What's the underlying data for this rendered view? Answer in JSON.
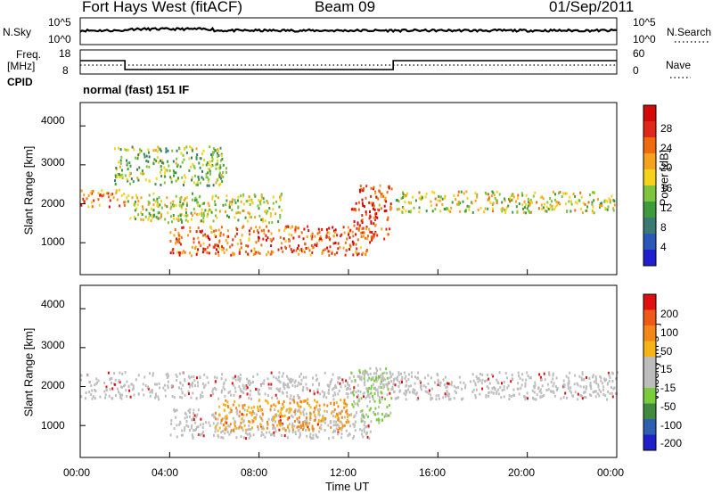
{
  "header": {
    "station": "Fort Hays West (fitACF)",
    "beam": "Beam 09",
    "date": "01/Sep/2011",
    "mode": "normal (fast) 151 IF"
  },
  "noise_panel": {
    "left_label": "N.Sky",
    "right_label": "N.Search",
    "left_ticks": [
      "10^5",
      "10^0"
    ],
    "right_ticks": [
      "10^5",
      "10^0"
    ]
  },
  "freq_panel": {
    "left_label_top": "Freq.",
    "left_label_unit": "[MHz]",
    "cpid_label": "CPID",
    "right_label": "Nave",
    "left_ticks": [
      "18",
      "8"
    ],
    "right_ticks": [
      "60",
      "0"
    ],
    "freq_steps": [
      {
        "from": 0,
        "to": 2,
        "value": 14
      },
      {
        "from": 2,
        "to": 14,
        "value": 10
      },
      {
        "from": 14,
        "to": 24,
        "value": 14
      }
    ]
  },
  "x_axis": {
    "label": "Time UT",
    "ticks": [
      "00:00",
      "04:00",
      "08:00",
      "12:00",
      "16:00",
      "20:00",
      "00:00"
    ]
  },
  "colors": {
    "power": [
      "#1f1fd0",
      "#2a58b8",
      "#3a7a70",
      "#3d9a3d",
      "#7ec43e",
      "#f5d21c",
      "#f6a21e",
      "#f06a10",
      "#e02818",
      "#d40808"
    ],
    "velocity": [
      "#2020c8",
      "#2f5fb0",
      "#3f8a3f",
      "#7acc3c",
      "#bdbdbd",
      "#bdbdbd",
      "#f6b418",
      "#f38818",
      "#ef5a18",
      "#e01010"
    ],
    "gs": "#bebebe"
  },
  "chart_data": [
    {
      "type": "heatmap",
      "title": "",
      "xlabel": "Time UT",
      "ylabel": "Slant Range [km]",
      "xlim": [
        0,
        24
      ],
      "ylim": [
        180,
        4600
      ],
      "y_ticks": [
        "1000",
        "2000",
        "3000",
        "4000"
      ],
      "colorbar": {
        "label": "Power [dB]",
        "ticks": [
          "28",
          "24",
          "20",
          "16",
          "12",
          "8",
          "4"
        ],
        "range": [
          0,
          30
        ]
      },
      "features": [
        {
          "name": "early band",
          "t": [
            0,
            2
          ],
          "range_km": [
            1950,
            2400
          ],
          "power_db": 22
        },
        {
          "name": "upper band",
          "t": [
            2,
            9
          ],
          "range_km": [
            1550,
            2300
          ],
          "power_db": 15
        },
        {
          "name": "main band",
          "t": [
            4,
            13
          ],
          "range_km": [
            700,
            1450
          ],
          "power_db": 24
        },
        {
          "name": "descending trace",
          "t": [
            12.1,
            13.9
          ],
          "range_km": [
            1100,
            2500
          ],
          "power_db": 26
        },
        {
          "name": "afternoon band",
          "t": [
            14,
            24
          ],
          "range_km": [
            1800,
            2350
          ],
          "power_db": 16
        },
        {
          "name": "high range patches",
          "t": [
            1.5,
            6.5
          ],
          "range_km": [
            2500,
            3500
          ],
          "power_db": 12
        }
      ]
    },
    {
      "type": "heatmap",
      "title": "",
      "xlabel": "Time UT",
      "ylabel": "Slant Range [km]",
      "xlim": [
        0,
        24
      ],
      "ylim": [
        180,
        4600
      ],
      "y_ticks": [
        "1000",
        "2000",
        "3000",
        "4000"
      ],
      "colorbar": {
        "label": "Velocity [m s⁻¹]",
        "ticks": [
          "200",
          "100",
          "50",
          "15",
          "-15",
          "-50",
          "-100",
          "-200"
        ],
        "range": [
          -250,
          250
        ]
      },
      "features": [
        {
          "name": "ground scatter band",
          "t": [
            0,
            24
          ],
          "range_km": [
            1700,
            2400
          ],
          "velocity": 0
        },
        {
          "name": "low range ground scatter",
          "t": [
            4,
            13
          ],
          "range_km": [
            700,
            1450
          ],
          "velocity": 0
        },
        {
          "name": "negative velocity patches",
          "t": [
            6,
            12
          ],
          "range_km": [
            900,
            1700
          ],
          "velocity": -60
        },
        {
          "name": "positive velocity trace",
          "t": [
            12.1,
            13.9
          ],
          "range_km": [
            1100,
            2500
          ],
          "velocity": 40
        }
      ]
    }
  ]
}
